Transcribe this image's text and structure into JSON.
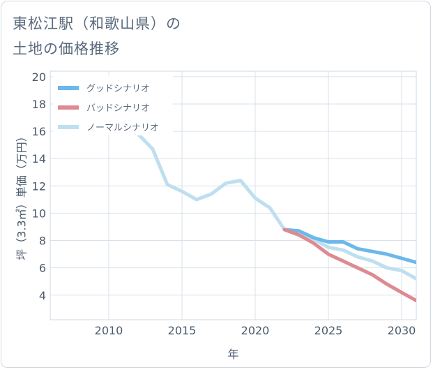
{
  "title_line1": "東松江駅（和歌山県）の",
  "title_line2": "土地の価格推移",
  "chart_data": {
    "type": "line",
    "title": "東松江駅（和歌山県）の土地の価格推移",
    "xlabel": "年",
    "ylabel": "坪（3.3㎡）単価（万円）",
    "xlim": [
      2006,
      2031
    ],
    "ylim": [
      2.2,
      20.4
    ],
    "x_ticks": [
      2010,
      2015,
      2020,
      2025,
      2030
    ],
    "y_ticks": [
      4,
      6,
      8,
      10,
      12,
      14,
      16,
      18,
      20
    ],
    "grid": true,
    "legend_position": "top-left",
    "series": [
      {
        "name": "グッドシナリオ",
        "color": "#6cb8ea",
        "x": [
          2022,
          2023,
          2024,
          2025,
          2026,
          2027,
          2028,
          2029,
          2030,
          2031
        ],
        "y": [
          8.8,
          8.7,
          8.2,
          7.9,
          7.9,
          7.4,
          7.2,
          7.0,
          6.7,
          6.4
        ]
      },
      {
        "name": "バッドシナリオ",
        "color": "#dd8a92",
        "x": [
          2022,
          2023,
          2024,
          2025,
          2026,
          2027,
          2028,
          2029,
          2030,
          2031
        ],
        "y": [
          8.8,
          8.4,
          7.8,
          7.0,
          6.5,
          6.0,
          5.5,
          4.8,
          4.2,
          3.6
        ]
      },
      {
        "name": "ノーマルシナリオ",
        "color": "#bfdff0",
        "x": [
          2008,
          2009,
          2010,
          2011,
          2012,
          2013,
          2014,
          2015,
          2016,
          2017,
          2018,
          2019,
          2020,
          2021,
          2022,
          2023,
          2024,
          2025,
          2026,
          2027,
          2028,
          2029,
          2030,
          2031
        ],
        "y": [
          18.0,
          19.8,
          18.7,
          17.2,
          15.8,
          14.7,
          12.1,
          11.6,
          11.0,
          11.4,
          12.2,
          12.4,
          11.1,
          10.4,
          8.8,
          8.4,
          8.1,
          7.5,
          7.3,
          6.8,
          6.5,
          6.0,
          5.8,
          5.2
        ]
      }
    ]
  }
}
